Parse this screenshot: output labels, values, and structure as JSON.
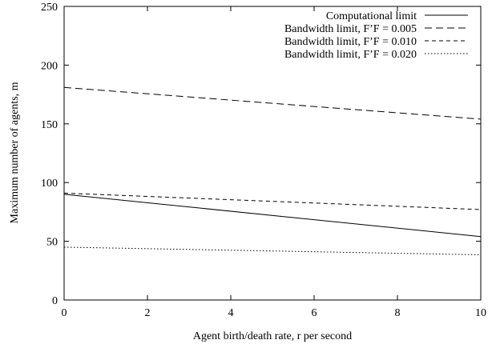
{
  "chart_data": {
    "type": "line",
    "title": "",
    "xlabel": "Agent birth/death rate, r per second",
    "ylabel": "Maximum number of agents, m",
    "xlim": [
      0,
      10
    ],
    "ylim": [
      0,
      250
    ],
    "x_ticks": [
      0,
      2,
      4,
      6,
      8,
      10
    ],
    "y_ticks": [
      0,
      50,
      100,
      150,
      200,
      250
    ],
    "grid": false,
    "legend_position": "top-right",
    "series": [
      {
        "name": "Computational limit",
        "style": "solid",
        "x": [
          0,
          10
        ],
        "y": [
          90,
          54
        ]
      },
      {
        "name": "Bandwidth limit, F’F = 0.005",
        "style": "long-dash",
        "x": [
          0,
          10
        ],
        "y": [
          181,
          154
        ]
      },
      {
        "name": "Bandwidth limit, F’F = 0.010",
        "style": "short-dash",
        "x": [
          0,
          10
        ],
        "y": [
          91,
          77
        ]
      },
      {
        "name": "Bandwidth limit, F’F = 0.020",
        "style": "dotted",
        "x": [
          0,
          10
        ],
        "y": [
          45,
          38.5
        ]
      }
    ]
  }
}
